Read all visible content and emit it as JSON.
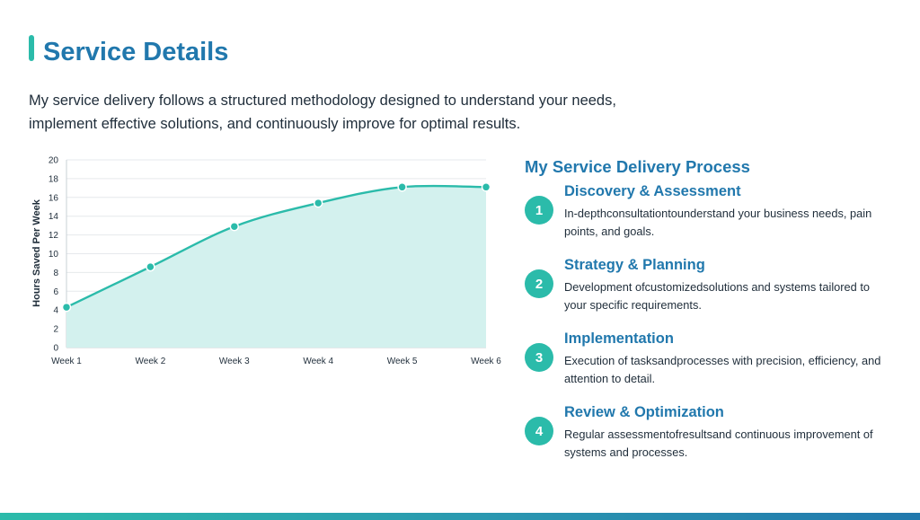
{
  "header": {
    "title": "Service Details",
    "intro": "My service delivery follows a structured methodology designed to understand your needs, implement effective solutions, and continuously improve for optimal results."
  },
  "chart_data": {
    "type": "line",
    "categories": [
      "Week 1",
      "Week 2",
      "Week 3",
      "Week 4",
      "Week 5",
      "Week 6"
    ],
    "series": [
      {
        "values": [
          4.3,
          8.6,
          12.9,
          15.4,
          17.1,
          17.1
        ]
      }
    ],
    "title": "",
    "xlabel": "",
    "ylabel": "Hours Saved Per Week",
    "ylim": [
      0,
      20
    ],
    "yticks": [
      0,
      2,
      4,
      6,
      8,
      10,
      12,
      14,
      16,
      18,
      20
    ],
    "grid": true,
    "fill": "area",
    "colors": {
      "line": "#2bbbaa",
      "fill": "#d3f1ee",
      "grid": "#e6e9ec"
    }
  },
  "process": {
    "title": "My Service Delivery Process",
    "steps": [
      {
        "num": "1",
        "title": "Discovery & Assessment",
        "desc": "In-depthconsultationtounderstand your business needs, pain points, and goals."
      },
      {
        "num": "2",
        "title": "Strategy & Planning",
        "desc": "Development ofcustomizedsolutions and systems tailored to your specific requirements."
      },
      {
        "num": "3",
        "title": "Implementation",
        "desc": "Execution of tasksandprocesses with precision, efficiency, and attention to detail."
      },
      {
        "num": "4",
        "title": "Review & Optimization",
        "desc": "Regular assessmentofresultsand continuous improvement of systems and processes."
      }
    ]
  },
  "colors": {
    "accent": "#2bbbaa",
    "heading": "#2178ad",
    "text": "#1f2d3a"
  }
}
